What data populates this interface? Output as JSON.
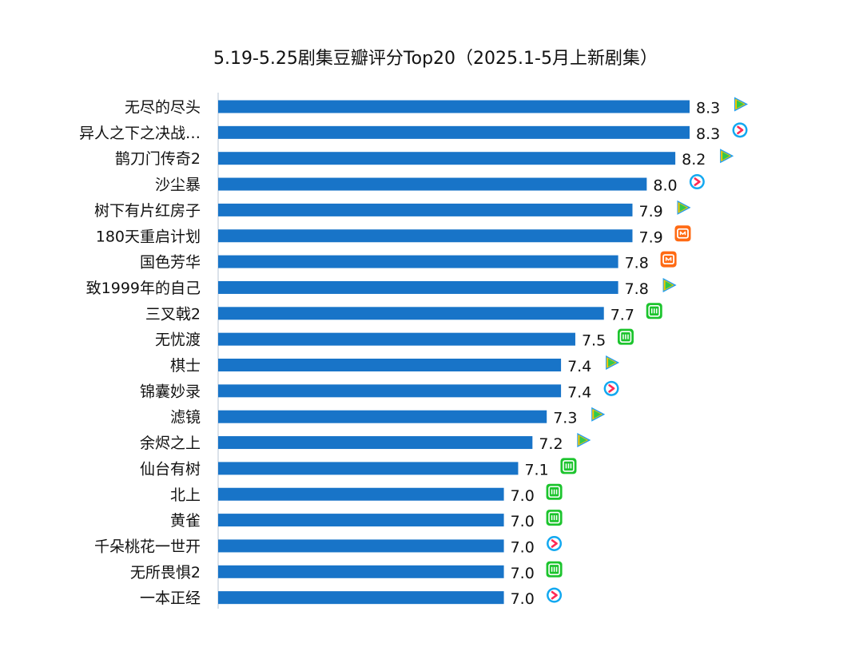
{
  "colors": {
    "bar": "#1874C8",
    "axis": "#cfd8e3",
    "tencent_green": "#2fc84f",
    "tencent_yellow": "#f4c400",
    "tencent_blue": "#1e9df0",
    "youku_blue": "#12a8f0",
    "youku_red": "#ff2a55",
    "mango_orange": "#ff6a13",
    "iqiyi_green": "#1cc42d"
  },
  "chart_data": {
    "type": "bar",
    "orientation": "horizontal",
    "title": "5.19-5.25剧集豆瓣评分Top20（2025.1-5月上新剧集）",
    "xlim": [
      5.0,
      8.5
    ],
    "grid": false,
    "legend": "none",
    "categories": [
      "无尽的尽头",
      "异人之下之决战…",
      "鹊刀门传奇2",
      "沙尘暴",
      "树下有片红房子",
      "180天重启计划",
      "国色芳华",
      "致1999年的自己",
      "三叉戟2",
      "无忧渡",
      "棋士",
      "锦囊妙录",
      "滤镜",
      "余烬之上",
      "仙台有树",
      "北上",
      "黄雀",
      "千朵桃花一世开",
      "无所畏惧2",
      "一本正经"
    ],
    "values": [
      8.3,
      8.3,
      8.2,
      8.0,
      7.9,
      7.9,
      7.8,
      7.8,
      7.7,
      7.5,
      7.4,
      7.4,
      7.3,
      7.2,
      7.1,
      7.0,
      7.0,
      7.0,
      7.0,
      7.0
    ],
    "value_labels": [
      "8.3",
      "8.3",
      "8.2",
      "8.0",
      "7.9",
      "7.9",
      "7.8",
      "7.8",
      "7.7",
      "7.5",
      "7.4",
      "7.4",
      "7.3",
      "7.2",
      "7.1",
      "7.0",
      "7.0",
      "7.0",
      "7.0",
      "7.0"
    ],
    "platform_icons": [
      "tencent-video-icon",
      "youku-icon",
      "tencent-video-icon",
      "youku-icon",
      "tencent-video-icon",
      "mango-tv-icon",
      "mango-tv-icon",
      "tencent-video-icon",
      "iqiyi-icon",
      "iqiyi-icon",
      "tencent-video-icon",
      "youku-icon",
      "tencent-video-icon",
      "tencent-video-icon",
      "iqiyi-icon",
      "iqiyi-icon",
      "iqiyi-icon",
      "youku-icon",
      "iqiyi-icon",
      "youku-icon"
    ]
  }
}
